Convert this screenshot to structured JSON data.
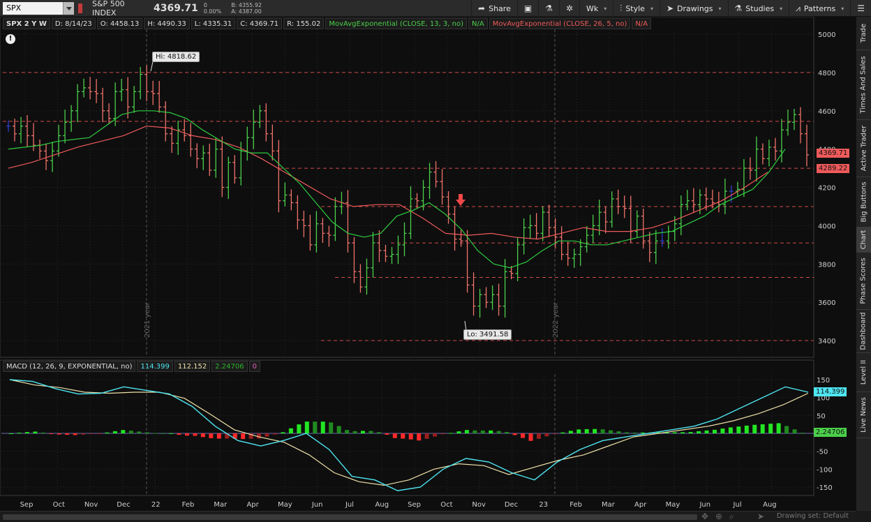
{
  "toolbar": {
    "symbol": "SPX",
    "description": "S&P 500 INDEX",
    "last": "4369.71",
    "change": "0",
    "change_pct": "0.00%",
    "bid": "B: 4355.92",
    "ask": "A: 4387.00",
    "share_label": "Share",
    "timeframe_label": "Wk",
    "style_label": "Style",
    "drawings_label": "Drawings",
    "studies_label": "Studies",
    "patterns_label": "Patterns"
  },
  "side_tabs": [
    "Trade",
    "Times And Sales",
    "Active Trader",
    "Big Buttons",
    "Chart",
    "Phase Scores",
    "Dashboard",
    "Level II",
    "Live News"
  ],
  "header": {
    "title": "SPX 2 Y W",
    "date": "D: 8/14/23",
    "open": "O: 4458.13",
    "high": "H: 4490.33",
    "low": "L: 4335.31",
    "close": "C: 4369.71",
    "range": "R: 155.02",
    "ema_fast": "MovAvgExponential (CLOSE, 13, 3, no)",
    "ema_fast_val": "N/A",
    "ema_slow": "MovAvgExponential (CLOSE, 26, 5, no)",
    "ema_slow_val": "N/A"
  },
  "callouts": {
    "hi": "Hi: 4818.62",
    "lo": "Lo: 3491.58"
  },
  "year_labels": [
    "2021 year",
    "2022 year"
  ],
  "price_labels": {
    "last": "4369.71",
    "ema": "4289.22"
  },
  "macd": {
    "title": "MACD (12, 26, 9, EXPONENTIAL, no)",
    "value": "114.399",
    "avg": "112.152",
    "diff": "2.24706",
    "zero": "0",
    "label_value": "114.399",
    "label_diff": "2.24706"
  },
  "bottom": {
    "drawing_set": "Drawing set: Default"
  },
  "colors": {
    "up": "#4bd04b",
    "down": "#f0736a",
    "flat": "#2e3fc8",
    "ema_fast": "#2ecc40",
    "ema_slow": "#f05a5a",
    "macd": "#4ee6f2",
    "signal": "#efe0a8"
  },
  "chart_data": {
    "type": "bar",
    "price_axis": {
      "min": 3400,
      "max": 5000,
      "ticks": [
        3400,
        3600,
        3800,
        4000,
        4200,
        4400,
        4600,
        4800,
        5000
      ]
    },
    "levels": [
      4800,
      4545,
      4300,
      4100,
      3910,
      3730,
      3400
    ],
    "x_labels": [
      "Sep",
      "Oct",
      "Nov",
      "Dec",
      "22",
      "Feb",
      "Mar",
      "Apr",
      "May",
      "Jun",
      "Jul",
      "Aug",
      "Sep",
      "Oct",
      "Nov",
      "Dec",
      "23",
      "Feb",
      "Mar",
      "Apr",
      "May",
      "Jun",
      "Jul",
      "Aug"
    ],
    "weekly_close": [
      4520,
      4480,
      4520,
      4470,
      4420,
      4390,
      4340,
      4390,
      4470,
      4540,
      4600,
      4700,
      4720,
      4700,
      4690,
      4600,
      4560,
      4700,
      4710,
      4620,
      4700,
      4790,
      4700,
      4690,
      4620,
      4480,
      4430,
      4500,
      4470,
      4400,
      4350,
      4380,
      4290,
      4400,
      4200,
      4330,
      4250,
      4390,
      4460,
      4540,
      4600,
      4480,
      4390,
      4130,
      4160,
      4120,
      4030,
      4000,
      3900,
      4010,
      3960,
      3950,
      4100,
      4120,
      3910,
      3760,
      3680,
      3780,
      3910,
      3870,
      3840,
      3850,
      3900,
      3960,
      4140,
      4130,
      4200,
      4280,
      4230,
      4150,
      4060,
      3930,
      3920,
      3690,
      3580,
      3640,
      3600,
      3640,
      3580,
      3760,
      3750,
      3900,
      3990,
      4000,
      3960,
      4070,
      3990,
      3940,
      3850,
      3830,
      3850,
      3890,
      3950,
      4000,
      4070,
      4020,
      4140,
      4100,
      4090,
      3970,
      4050,
      3920,
      3860,
      3920,
      3920,
      3970,
      4010,
      4110,
      4130,
      4110,
      4160,
      4140,
      4120,
      4110,
      4180,
      4180,
      4190,
      4300,
      4290,
      4400,
      4350,
      4410,
      4390,
      4500,
      4540,
      4580,
      4480,
      4370
    ],
    "ema_fast": [
      4400,
      4410,
      4420,
      4440,
      4450,
      4460,
      4520,
      4580,
      4600,
      4600,
      4590,
      4560,
      4500,
      4450,
      4400,
      4380,
      4380,
      4300,
      4220,
      4120,
      4020,
      3960,
      3940,
      3960,
      4050,
      4080,
      4120,
      4060,
      3980,
      3870,
      3800,
      3780,
      3810,
      3870,
      3920,
      3920,
      3900,
      3900,
      3920,
      3940,
      3960,
      3970,
      4010,
      4050,
      4110,
      4150,
      4190,
      4280,
      4400
    ],
    "ema_slow": [
      4300,
      4330,
      4370,
      4410,
      4440,
      4470,
      4520,
      4510,
      4470,
      4450,
      4410,
      4350,
      4280,
      4210,
      4140,
      4100,
      4110,
      4110,
      4040,
      3960,
      3950,
      3960,
      3940,
      3930,
      3960,
      3990,
      3970,
      3970,
      3990,
      4030,
      4080,
      4130,
      4200,
      4280
    ],
    "macd_axis": {
      "min": -175,
      "max": 175,
      "ticks": [
        -150,
        -100,
        -50,
        0,
        50,
        100,
        150
      ]
    },
    "macd_line": [
      150,
      145,
      125,
      110,
      112,
      130,
      120,
      110,
      75,
      20,
      -20,
      -35,
      -20,
      0,
      -45,
      -120,
      -130,
      -160,
      -150,
      -100,
      -70,
      -80,
      -110,
      -130,
      -80,
      -45,
      -20,
      -10,
      0,
      10,
      20,
      40,
      70,
      100,
      130,
      115
    ],
    "signal_line": [
      150,
      135,
      128,
      115,
      112,
      115,
      115,
      98,
      55,
      10,
      -10,
      -25,
      -60,
      -110,
      -135,
      -145,
      -130,
      -100,
      -85,
      -90,
      -115,
      -95,
      -75,
      -60,
      -35,
      -10,
      0,
      10,
      20,
      35,
      55,
      80,
      112
    ]
  }
}
